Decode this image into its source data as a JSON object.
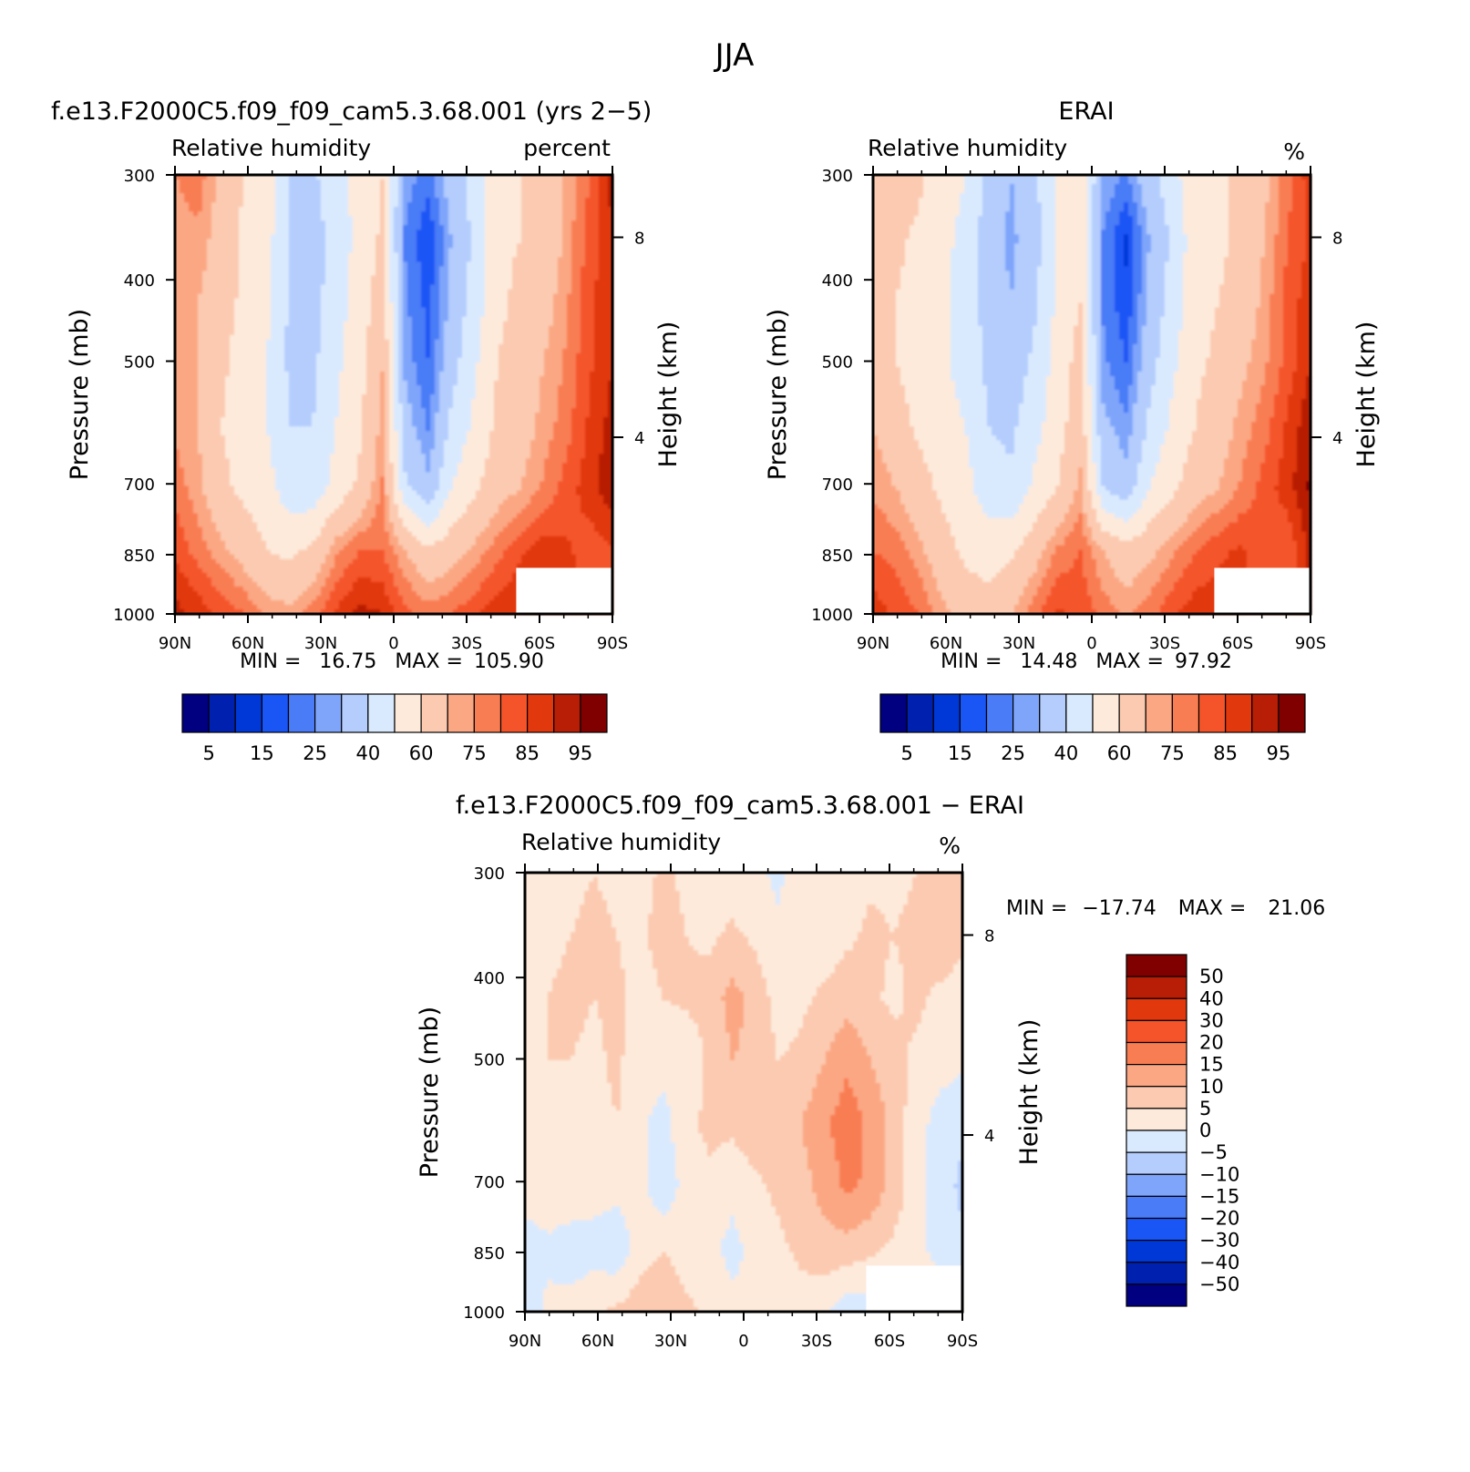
{
  "figure": {
    "title": "JJA"
  },
  "colors": {
    "rh_levels": [
      "#000080",
      "#0020b0",
      "#0038d8",
      "#1a55f5",
      "#4a7cf7",
      "#7fa5fb",
      "#b4cdfd",
      "#daeafe",
      "#fdeadb",
      "#fccab0",
      "#fba783",
      "#f97d52",
      "#f5542a",
      "#e1380e",
      "#b81e05",
      "#800000"
    ],
    "diff_levels": [
      "#000080",
      "#0020b0",
      "#0038d8",
      "#1a55f5",
      "#4a7cf7",
      "#7fa5fb",
      "#b4cdfd",
      "#daeafe",
      "#fdeadb",
      "#fccab0",
      "#fba783",
      "#f97d52",
      "#f5542a",
      "#e1380e",
      "#b81e05",
      "#800000"
    ]
  },
  "chart_data": [
    {
      "type": "contour",
      "id": "model",
      "title": "f.e13.F2000C5.f09_f09_cam5.3.68.001 (yrs 2−5)",
      "subtitle_left": "Relative humidity",
      "subtitle_right": "percent",
      "ylabel": "Pressure (mb)",
      "ylabel_right": "Height (km)",
      "x_ticks": [
        "90N",
        "60N",
        "30N",
        "0",
        "30S",
        "60S",
        "90S"
      ],
      "y_ticks": [
        "300",
        "400",
        "500",
        "700",
        "850",
        "1000"
      ],
      "y_ticks_right": [
        "8",
        "4"
      ],
      "ylim": [
        1000,
        300
      ],
      "stats": {
        "min_label": "MIN =",
        "min": "16.75",
        "max_label": "MAX =",
        "max": "105.90"
      },
      "colorbar_labels": [
        "5",
        "15",
        "25",
        "40",
        "60",
        "75",
        "85",
        "95"
      ],
      "field": [
        [
          75,
          78,
          68,
          60,
          56,
          40,
          38,
          48,
          52,
          60,
          28,
          22,
          35,
          44,
          58,
          60,
          62,
          72,
          80,
          92
        ],
        [
          72,
          74,
          66,
          58,
          54,
          38,
          34,
          46,
          52,
          62,
          24,
          16,
          30,
          42,
          58,
          60,
          62,
          72,
          82,
          90
        ],
        [
          70,
          70,
          64,
          58,
          52,
          38,
          36,
          46,
          54,
          66,
          26,
          18,
          32,
          44,
          58,
          62,
          66,
          74,
          84,
          88
        ],
        [
          72,
          70,
          62,
          56,
          50,
          38,
          38,
          48,
          56,
          70,
          28,
          20,
          36,
          48,
          60,
          64,
          70,
          76,
          84,
          90
        ],
        [
          74,
          70,
          60,
          56,
          50,
          40,
          40,
          50,
          58,
          72,
          34,
          24,
          42,
          52,
          62,
          66,
          72,
          78,
          86,
          92
        ],
        [
          78,
          72,
          62,
          58,
          54,
          44,
          44,
          54,
          62,
          76,
          42,
          32,
          50,
          58,
          66,
          70,
          76,
          82,
          88,
          94
        ],
        [
          84,
          78,
          72,
          66,
          60,
          58,
          62,
          74,
          80,
          80,
          70,
          62,
          66,
          72,
          78,
          84,
          88,
          86,
          82,
          84
        ],
        [
          92,
          88,
          84,
          80,
          74,
          72,
          78,
          86,
          92,
          90,
          82,
          78,
          80,
          84,
          88,
          90,
          92,
          90,
          84,
          82
        ]
      ]
    },
    {
      "type": "contour",
      "id": "obs",
      "title": "ERAI",
      "subtitle_left": "Relative humidity",
      "subtitle_right": "%",
      "ylabel": "Pressure (mb)",
      "ylabel_right": "Height (km)",
      "x_ticks": [
        "90N",
        "60N",
        "30N",
        "0",
        "30S",
        "60S",
        "90S"
      ],
      "y_ticks": [
        "300",
        "400",
        "500",
        "700",
        "850",
        "1000"
      ],
      "y_ticks_right": [
        "8",
        "4"
      ],
      "ylim": [
        1000,
        300
      ],
      "stats": {
        "min_label": "MIN =",
        "min": "14.48",
        "max_label": "MAX =",
        "max": "97.92"
      },
      "colorbar_labels": [
        "5",
        "15",
        "25",
        "40",
        "60",
        "75",
        "85",
        "95"
      ],
      "field": [
        [
          68,
          66,
          62,
          54,
          50,
          38,
          30,
          38,
          50,
          56,
          30,
          24,
          36,
          46,
          58,
          58,
          62,
          68,
          78,
          88
        ],
        [
          66,
          62,
          58,
          52,
          48,
          34,
          28,
          36,
          50,
          58,
          24,
          14,
          30,
          42,
          56,
          58,
          62,
          70,
          80,
          86
        ],
        [
          64,
          60,
          56,
          52,
          46,
          36,
          30,
          38,
          52,
          60,
          24,
          16,
          32,
          44,
          56,
          60,
          64,
          72,
          82,
          88
        ],
        [
          66,
          60,
          56,
          52,
          46,
          38,
          34,
          42,
          54,
          64,
          26,
          20,
          36,
          48,
          58,
          62,
          68,
          74,
          82,
          90
        ],
        [
          70,
          64,
          58,
          54,
          50,
          40,
          38,
          46,
          56,
          66,
          32,
          26,
          42,
          52,
          60,
          66,
          72,
          78,
          86,
          94
        ],
        [
          74,
          70,
          64,
          58,
          54,
          44,
          42,
          52,
          60,
          72,
          40,
          34,
          50,
          58,
          66,
          70,
          76,
          82,
          88,
          96
        ],
        [
          80,
          78,
          72,
          64,
          58,
          56,
          58,
          66,
          76,
          80,
          70,
          64,
          68,
          74,
          80,
          84,
          86,
          82,
          80,
          92
        ],
        [
          88,
          84,
          80,
          72,
          66,
          64,
          70,
          78,
          86,
          84,
          78,
          74,
          78,
          84,
          88,
          88,
          86,
          82,
          84,
          96
        ]
      ]
    },
    {
      "type": "contour",
      "id": "diff",
      "title": "f.e13.F2000C5.f09_f09_cam5.3.68.001 − ERAI",
      "subtitle_left": "Relative humidity",
      "subtitle_right": "%",
      "ylabel": "Pressure (mb)",
      "ylabel_right": "Height (km)",
      "x_ticks": [
        "90N",
        "60N",
        "30N",
        "0",
        "30S",
        "60S",
        "90S"
      ],
      "y_ticks": [
        "300",
        "400",
        "500",
        "700",
        "850",
        "1000"
      ],
      "y_ticks_right": [
        "8",
        "4"
      ],
      "ylim": [
        1000,
        300
      ],
      "stats": {
        "min_label": "MIN =",
        "min": "−17.74",
        "max_label": "MAX =",
        "max": "21.06"
      },
      "colorbar_labels": [
        "50",
        "40",
        "30",
        "20",
        "15",
        "10",
        "5",
        "0",
        "−5",
        "−10",
        "−15",
        "−20",
        "−30",
        "−40",
        "−50"
      ],
      "field": [
        [
          2,
          3,
          4,
          5,
          4,
          3,
          6,
          4,
          3,
          2,
          1,
          -1,
          2,
          3,
          3,
          4,
          4,
          5,
          8,
          10
        ],
        [
          3,
          4,
          5,
          6,
          5,
          4,
          7,
          5,
          4,
          6,
          4,
          1,
          3,
          2,
          4,
          6,
          5,
          6,
          8,
          6
        ],
        [
          4,
          5,
          6,
          5,
          6,
          3,
          5,
          6,
          7,
          12,
          8,
          3,
          4,
          6,
          8,
          6,
          4,
          6,
          4,
          3
        ],
        [
          4,
          5,
          5,
          4,
          6,
          2,
          2,
          1,
          6,
          10,
          9,
          5,
          6,
          10,
          14,
          10,
          7,
          4,
          2,
          1
        ],
        [
          3,
          4,
          4,
          3,
          5,
          1,
          -2,
          4,
          6,
          6,
          8,
          8,
          10,
          14,
          18,
          14,
          8,
          2,
          -2,
          -4
        ],
        [
          2,
          3,
          4,
          2,
          2,
          2,
          -4,
          2,
          4,
          2,
          4,
          6,
          8,
          12,
          16,
          14,
          8,
          2,
          -3,
          -6
        ],
        [
          -2,
          -1,
          -3,
          -2,
          -4,
          3,
          5,
          3,
          2,
          -2,
          2,
          4,
          6,
          8,
          8,
          6,
          4,
          2,
          -2,
          -4
        ],
        [
          -3,
          1,
          2,
          4,
          6,
          8,
          8,
          6,
          4,
          2,
          1,
          2,
          3,
          1,
          -3,
          -2,
          2,
          4,
          3,
          2
        ]
      ]
    }
  ]
}
